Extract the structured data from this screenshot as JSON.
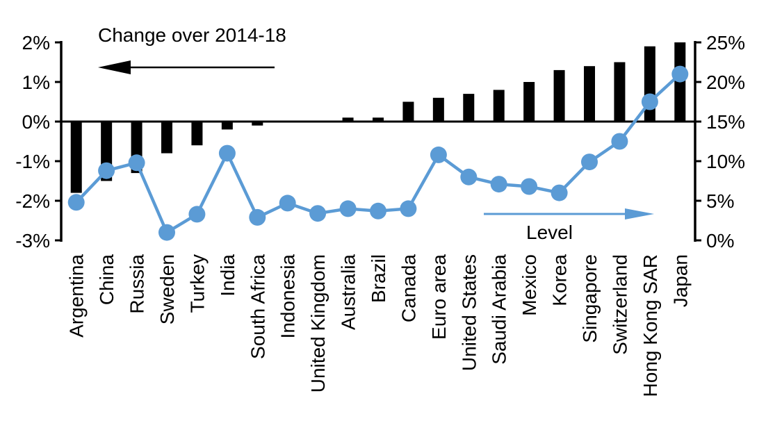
{
  "chart_data": {
    "type": "combo",
    "categories": [
      "Argentina",
      "China",
      "Russia",
      "Sweden",
      "Turkey",
      "India",
      "South Africa",
      "Indonesia",
      "United Kingdom",
      "Australia",
      "Brazil",
      "Canada",
      "Euro area",
      "United States",
      "Saudi Arabia",
      "Mexico",
      "Korea",
      "Singapore",
      "Switzerland",
      "Hong Kong SAR",
      "Japan"
    ],
    "series": [
      {
        "name": "Change over 2014-18",
        "type": "bar",
        "axis": "left",
        "color": "#000000",
        "unit": "%",
        "values": [
          -1.8,
          -1.5,
          -1.3,
          -0.8,
          -0.6,
          -0.2,
          -0.1,
          0,
          0,
          0.1,
          0.1,
          0.5,
          0.6,
          0.7,
          0.8,
          1.0,
          1.3,
          1.4,
          1.5,
          1.9,
          2.0
        ]
      },
      {
        "name": "Level",
        "type": "line",
        "axis": "right",
        "color": "#5B9BD5",
        "unit": "%",
        "values": [
          4.8,
          8.8,
          9.8,
          1.0,
          3.3,
          11.0,
          2.9,
          4.7,
          3.4,
          4.0,
          3.7,
          4.0,
          10.8,
          8.0,
          7.1,
          6.8,
          6.0,
          9.9,
          12.5,
          17.5,
          21.0
        ]
      }
    ],
    "left_axis": {
      "ticks": [
        "2%",
        "1%",
        "0%",
        "-1%",
        "-2%",
        "-3%"
      ],
      "tick_values": [
        2,
        1,
        0,
        -1,
        -2,
        -3
      ],
      "range": [
        -3,
        2
      ]
    },
    "right_axis": {
      "ticks": [
        "25%",
        "20%",
        "15%",
        "10%",
        "5%",
        "0%"
      ],
      "tick_values": [
        25,
        20,
        15,
        10,
        5,
        0
      ],
      "range": [
        0,
        25
      ]
    },
    "annotations": {
      "bars_label": "Change over 2014-18",
      "bars_arrow_direction": "left",
      "bars_arrow_color": "#000000",
      "line_label": "Level",
      "line_arrow_direction": "right",
      "line_arrow_color": "#5B9BD5"
    },
    "grid": false,
    "legend_position": "none",
    "background": "#ffffff",
    "category_label_rotation": -90
  }
}
